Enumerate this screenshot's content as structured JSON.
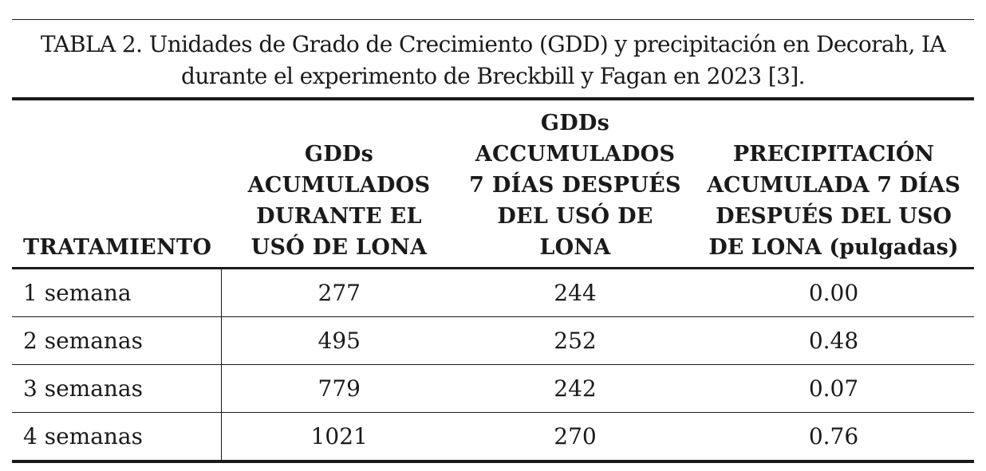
{
  "caption": {
    "line1": "TABLA 2. Unidades de Grado de Crecimiento (GDD) y precipitación en Decorah, IA",
    "line2": "durante el experimento de Breckbill y Fagan en 2023 [3]."
  },
  "table": {
    "headers": [
      [
        "TRATAMIENTO"
      ],
      [
        "GDDs",
        "ACUMULADOS",
        "DURANTE EL",
        "USÓ DE LONA"
      ],
      [
        "GDDs",
        "ACCUMULADOS",
        "7 DÍAS DESPUÉS",
        "DEL USÓ DE",
        "LONA"
      ],
      [
        "PRECIPITACIÓN",
        "ACUMULADA 7 DÍAS",
        "DESPUÉS DEL USO",
        "DE LONA (pulgadas)"
      ]
    ],
    "rows": [
      [
        "1 semana",
        "277",
        "244",
        "0.00"
      ],
      [
        "2 semanas",
        "495",
        "252",
        "0.48"
      ],
      [
        "3 semanas",
        "779",
        "242",
        "0.07"
      ],
      [
        "4 semanas",
        "1021",
        "270",
        "0.76"
      ]
    ]
  }
}
